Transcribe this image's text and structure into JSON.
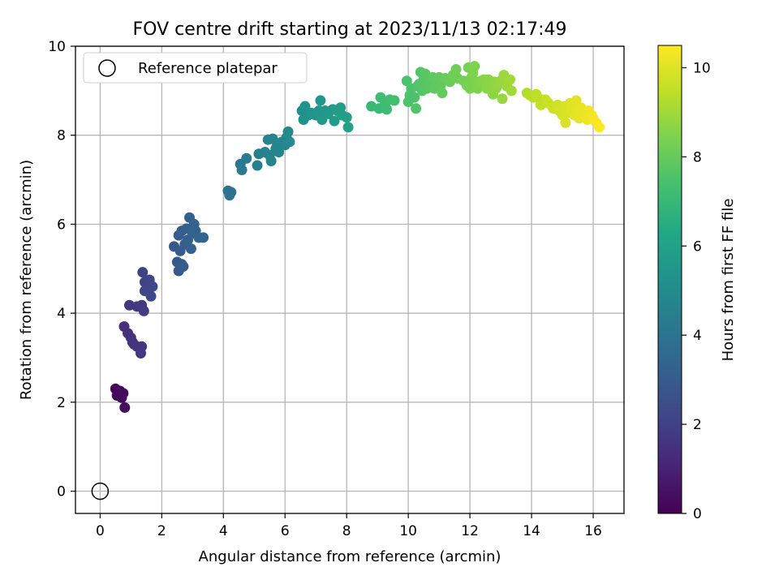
{
  "chart_data": {
    "type": "scatter",
    "title": "FOV centre drift starting at 2023/11/13 02:17:49",
    "xlabel": "Angular distance from reference (arcmin)",
    "ylabel": "Rotation from reference (arcmin)",
    "xlim": [
      -0.8,
      17.0
    ],
    "ylim": [
      -0.5,
      10.0
    ],
    "xticks": [
      "0",
      "2",
      "4",
      "6",
      "8",
      "10",
      "12",
      "14",
      "16"
    ],
    "yticks": [
      "0",
      "2",
      "4",
      "6",
      "8",
      "10"
    ],
    "grid": true,
    "legend": {
      "placement": "top-left",
      "entries": [
        "Reference platepar"
      ]
    },
    "reference_point": {
      "x": 0,
      "y": 0
    },
    "colorbar": {
      "label": "Hours from first FF file",
      "range": [
        0,
        10.5
      ],
      "ticks": [
        "0",
        "2",
        "4",
        "6",
        "8",
        "10"
      ],
      "colormap": "viridis"
    },
    "series": [
      {
        "points": [
          {
            "x": 0.5,
            "y": 2.3,
            "h": 0.05
          },
          {
            "x": 0.55,
            "y": 2.15,
            "h": 0.15
          },
          {
            "x": 0.65,
            "y": 2.25,
            "h": 0.2
          },
          {
            "x": 0.7,
            "y": 2.1,
            "h": 0.25
          },
          {
            "x": 0.75,
            "y": 2.2,
            "h": 0.3
          },
          {
            "x": 0.8,
            "y": 1.88,
            "h": 0.35
          },
          {
            "x": 0.78,
            "y": 3.7,
            "h": 1.4
          },
          {
            "x": 0.9,
            "y": 3.55,
            "h": 1.45
          },
          {
            "x": 1.0,
            "y": 3.45,
            "h": 1.5
          },
          {
            "x": 1.1,
            "y": 3.3,
            "h": 1.55
          },
          {
            "x": 1.05,
            "y": 3.35,
            "h": 1.55
          },
          {
            "x": 1.2,
            "y": 3.25,
            "h": 1.6
          },
          {
            "x": 1.35,
            "y": 3.25,
            "h": 1.6
          },
          {
            "x": 1.32,
            "y": 3.1,
            "h": 1.65
          },
          {
            "x": 0.95,
            "y": 4.18,
            "h": 1.7
          },
          {
            "x": 1.2,
            "y": 4.15,
            "h": 1.75
          },
          {
            "x": 1.35,
            "y": 4.18,
            "h": 1.8
          },
          {
            "x": 1.42,
            "y": 4.05,
            "h": 1.85
          },
          {
            "x": 1.38,
            "y": 4.92,
            "h": 2.0
          },
          {
            "x": 1.45,
            "y": 4.7,
            "h": 2.05
          },
          {
            "x": 1.55,
            "y": 4.55,
            "h": 2.1
          },
          {
            "x": 1.6,
            "y": 4.75,
            "h": 2.15
          },
          {
            "x": 1.7,
            "y": 4.6,
            "h": 2.2
          },
          {
            "x": 1.65,
            "y": 4.38,
            "h": 2.25
          },
          {
            "x": 1.45,
            "y": 4.5,
            "h": 2.2
          },
          {
            "x": 2.4,
            "y": 5.5,
            "h": 2.8
          },
          {
            "x": 2.5,
            "y": 5.15,
            "h": 2.85
          },
          {
            "x": 2.55,
            "y": 4.95,
            "h": 2.9
          },
          {
            "x": 2.65,
            "y": 5.1,
            "h": 2.95
          },
          {
            "x": 2.7,
            "y": 5.05,
            "h": 3.0
          },
          {
            "x": 2.55,
            "y": 5.75,
            "h": 3.0
          },
          {
            "x": 2.6,
            "y": 5.4,
            "h": 3.05
          },
          {
            "x": 2.65,
            "y": 5.85,
            "h": 3.1
          },
          {
            "x": 2.75,
            "y": 5.55,
            "h": 3.1
          },
          {
            "x": 2.8,
            "y": 5.9,
            "h": 3.15
          },
          {
            "x": 2.85,
            "y": 5.65,
            "h": 3.2
          },
          {
            "x": 2.9,
            "y": 6.15,
            "h": 3.2
          },
          {
            "x": 2.95,
            "y": 5.45,
            "h": 3.25
          },
          {
            "x": 3.0,
            "y": 5.8,
            "h": 3.25
          },
          {
            "x": 3.05,
            "y": 6.0,
            "h": 3.3
          },
          {
            "x": 3.1,
            "y": 5.85,
            "h": 3.3
          },
          {
            "x": 3.2,
            "y": 5.7,
            "h": 3.35
          },
          {
            "x": 3.35,
            "y": 5.7,
            "h": 3.4
          },
          {
            "x": 4.15,
            "y": 6.75,
            "h": 3.9
          },
          {
            "x": 4.2,
            "y": 6.65,
            "h": 3.95
          },
          {
            "x": 4.25,
            "y": 6.72,
            "h": 3.95
          },
          {
            "x": 4.55,
            "y": 7.35,
            "h": 4.2
          },
          {
            "x": 4.6,
            "y": 7.22,
            "h": 4.25
          },
          {
            "x": 4.75,
            "y": 7.48,
            "h": 4.3
          },
          {
            "x": 5.1,
            "y": 7.32,
            "h": 4.45
          },
          {
            "x": 5.15,
            "y": 7.58,
            "h": 4.5
          },
          {
            "x": 5.35,
            "y": 7.62,
            "h": 4.55
          },
          {
            "x": 5.45,
            "y": 7.9,
            "h": 4.6
          },
          {
            "x": 5.5,
            "y": 7.55,
            "h": 4.6
          },
          {
            "x": 5.55,
            "y": 7.42,
            "h": 4.65
          },
          {
            "x": 5.6,
            "y": 7.92,
            "h": 4.65
          },
          {
            "x": 5.7,
            "y": 7.7,
            "h": 4.7
          },
          {
            "x": 5.75,
            "y": 7.8,
            "h": 4.75
          },
          {
            "x": 5.8,
            "y": 7.62,
            "h": 4.75
          },
          {
            "x": 5.9,
            "y": 7.85,
            "h": 4.8
          },
          {
            "x": 6.0,
            "y": 7.78,
            "h": 4.85
          },
          {
            "x": 6.05,
            "y": 7.95,
            "h": 4.9
          },
          {
            "x": 6.1,
            "y": 8.08,
            "h": 4.9
          },
          {
            "x": 6.15,
            "y": 7.85,
            "h": 4.95
          },
          {
            "x": 6.55,
            "y": 8.55,
            "h": 5.2
          },
          {
            "x": 6.6,
            "y": 8.35,
            "h": 5.25
          },
          {
            "x": 6.65,
            "y": 8.65,
            "h": 5.3
          },
          {
            "x": 6.75,
            "y": 8.45,
            "h": 5.35
          },
          {
            "x": 6.85,
            "y": 8.5,
            "h": 5.4
          },
          {
            "x": 7.0,
            "y": 8.45,
            "h": 5.45
          },
          {
            "x": 7.1,
            "y": 8.55,
            "h": 5.5
          },
          {
            "x": 7.15,
            "y": 8.78,
            "h": 5.5
          },
          {
            "x": 7.2,
            "y": 8.35,
            "h": 5.55
          },
          {
            "x": 7.3,
            "y": 8.55,
            "h": 5.6
          },
          {
            "x": 7.4,
            "y": 8.48,
            "h": 5.65
          },
          {
            "x": 7.55,
            "y": 8.58,
            "h": 5.7
          },
          {
            "x": 7.6,
            "y": 8.32,
            "h": 5.75
          },
          {
            "x": 7.7,
            "y": 8.55,
            "h": 5.8
          },
          {
            "x": 7.8,
            "y": 8.62,
            "h": 5.85
          },
          {
            "x": 7.85,
            "y": 8.45,
            "h": 5.9
          },
          {
            "x": 8.0,
            "y": 8.4,
            "h": 5.95
          },
          {
            "x": 8.05,
            "y": 8.18,
            "h": 6.0
          },
          {
            "x": 8.8,
            "y": 8.65,
            "h": 7.0
          },
          {
            "x": 9.05,
            "y": 8.6,
            "h": 7.1
          },
          {
            "x": 9.1,
            "y": 8.85,
            "h": 7.15
          },
          {
            "x": 9.25,
            "y": 8.72,
            "h": 7.2
          },
          {
            "x": 9.3,
            "y": 8.58,
            "h": 7.2
          },
          {
            "x": 9.4,
            "y": 8.8,
            "h": 7.25
          },
          {
            "x": 9.55,
            "y": 8.78,
            "h": 7.3
          },
          {
            "x": 9.95,
            "y": 9.22,
            "h": 7.45
          },
          {
            "x": 10.0,
            "y": 8.75,
            "h": 7.5
          },
          {
            "x": 10.05,
            "y": 8.9,
            "h": 7.5
          },
          {
            "x": 10.1,
            "y": 9.05,
            "h": 7.55
          },
          {
            "x": 10.2,
            "y": 8.85,
            "h": 7.55
          },
          {
            "x": 10.25,
            "y": 8.6,
            "h": 7.6
          },
          {
            "x": 10.3,
            "y": 9.1,
            "h": 7.6
          },
          {
            "x": 10.35,
            "y": 9.15,
            "h": 7.65
          },
          {
            "x": 10.4,
            "y": 9.42,
            "h": 7.65
          },
          {
            "x": 10.45,
            "y": 9.0,
            "h": 7.7
          },
          {
            "x": 10.5,
            "y": 9.25,
            "h": 7.7
          },
          {
            "x": 10.55,
            "y": 9.38,
            "h": 7.75
          },
          {
            "x": 10.6,
            "y": 9.05,
            "h": 7.75
          },
          {
            "x": 10.7,
            "y": 9.2,
            "h": 7.8
          },
          {
            "x": 10.75,
            "y": 9.1,
            "h": 7.8
          },
          {
            "x": 10.8,
            "y": 9.3,
            "h": 7.85
          },
          {
            "x": 10.85,
            "y": 9.05,
            "h": 7.85
          },
          {
            "x": 10.9,
            "y": 9.22,
            "h": 7.9
          },
          {
            "x": 11.0,
            "y": 9.3,
            "h": 7.95
          },
          {
            "x": 11.05,
            "y": 9.12,
            "h": 7.95
          },
          {
            "x": 11.1,
            "y": 8.95,
            "h": 8.0
          },
          {
            "x": 11.2,
            "y": 9.28,
            "h": 8.05
          },
          {
            "x": 11.35,
            "y": 9.2,
            "h": 8.1
          },
          {
            "x": 11.45,
            "y": 9.35,
            "h": 8.15
          },
          {
            "x": 11.55,
            "y": 9.48,
            "h": 8.2
          },
          {
            "x": 11.6,
            "y": 9.28,
            "h": 8.2
          },
          {
            "x": 11.8,
            "y": 9.22,
            "h": 8.3
          },
          {
            "x": 11.9,
            "y": 9.12,
            "h": 8.35
          },
          {
            "x": 11.95,
            "y": 9.52,
            "h": 8.35
          },
          {
            "x": 12.0,
            "y": 9.05,
            "h": 8.4
          },
          {
            "x": 12.05,
            "y": 9.3,
            "h": 8.4
          },
          {
            "x": 12.1,
            "y": 9.4,
            "h": 8.45
          },
          {
            "x": 12.15,
            "y": 9.55,
            "h": 8.45
          },
          {
            "x": 12.2,
            "y": 9.2,
            "h": 8.5
          },
          {
            "x": 12.25,
            "y": 9.05,
            "h": 8.5
          },
          {
            "x": 12.35,
            "y": 9.22,
            "h": 8.55
          },
          {
            "x": 12.45,
            "y": 9.25,
            "h": 8.6
          },
          {
            "x": 12.55,
            "y": 9.05,
            "h": 8.65
          },
          {
            "x": 12.6,
            "y": 9.25,
            "h": 8.65
          },
          {
            "x": 12.7,
            "y": 9.1,
            "h": 8.7
          },
          {
            "x": 12.75,
            "y": 8.92,
            "h": 8.7
          },
          {
            "x": 12.8,
            "y": 9.2,
            "h": 8.75
          },
          {
            "x": 12.85,
            "y": 9.05,
            "h": 8.75
          },
          {
            "x": 12.9,
            "y": 9.12,
            "h": 8.8
          },
          {
            "x": 13.0,
            "y": 9.22,
            "h": 8.85
          },
          {
            "x": 13.05,
            "y": 8.82,
            "h": 8.85
          },
          {
            "x": 13.1,
            "y": 9.35,
            "h": 8.9
          },
          {
            "x": 13.2,
            "y": 9.1,
            "h": 8.95
          },
          {
            "x": 13.3,
            "y": 9.25,
            "h": 9.0
          },
          {
            "x": 13.35,
            "y": 9.0,
            "h": 9.0
          },
          {
            "x": 13.85,
            "y": 8.95,
            "h": 9.3
          },
          {
            "x": 13.95,
            "y": 8.9,
            "h": 9.35
          },
          {
            "x": 14.05,
            "y": 8.85,
            "h": 9.4
          },
          {
            "x": 14.15,
            "y": 8.92,
            "h": 9.45
          },
          {
            "x": 14.25,
            "y": 8.82,
            "h": 9.5
          },
          {
            "x": 14.3,
            "y": 8.68,
            "h": 9.55
          },
          {
            "x": 14.45,
            "y": 8.8,
            "h": 9.6
          },
          {
            "x": 14.55,
            "y": 8.72,
            "h": 9.65
          },
          {
            "x": 14.7,
            "y": 8.6,
            "h": 9.7
          },
          {
            "x": 14.85,
            "y": 8.68,
            "h": 9.75
          },
          {
            "x": 14.9,
            "y": 8.55,
            "h": 9.8
          },
          {
            "x": 15.0,
            "y": 8.45,
            "h": 9.85
          },
          {
            "x": 15.05,
            "y": 8.65,
            "h": 9.85
          },
          {
            "x": 15.1,
            "y": 8.28,
            "h": 9.9
          },
          {
            "x": 15.15,
            "y": 8.5,
            "h": 9.9
          },
          {
            "x": 15.25,
            "y": 8.72,
            "h": 9.95
          },
          {
            "x": 15.3,
            "y": 8.52,
            "h": 10.0
          },
          {
            "x": 15.35,
            "y": 8.65,
            "h": 10.0
          },
          {
            "x": 15.4,
            "y": 8.45,
            "h": 10.05
          },
          {
            "x": 15.45,
            "y": 8.78,
            "h": 10.05
          },
          {
            "x": 15.5,
            "y": 8.55,
            "h": 10.1
          },
          {
            "x": 15.55,
            "y": 8.38,
            "h": 10.1
          },
          {
            "x": 15.6,
            "y": 8.62,
            "h": 10.15
          },
          {
            "x": 15.65,
            "y": 8.5,
            "h": 10.15
          },
          {
            "x": 15.7,
            "y": 8.45,
            "h": 10.2
          },
          {
            "x": 15.8,
            "y": 8.35,
            "h": 10.25
          },
          {
            "x": 15.85,
            "y": 8.55,
            "h": 10.25
          },
          {
            "x": 15.95,
            "y": 8.45,
            "h": 10.3
          },
          {
            "x": 16.0,
            "y": 8.38,
            "h": 10.35
          },
          {
            "x": 16.1,
            "y": 8.28,
            "h": 10.4
          },
          {
            "x": 16.2,
            "y": 8.18,
            "h": 10.45
          }
        ]
      }
    ]
  }
}
